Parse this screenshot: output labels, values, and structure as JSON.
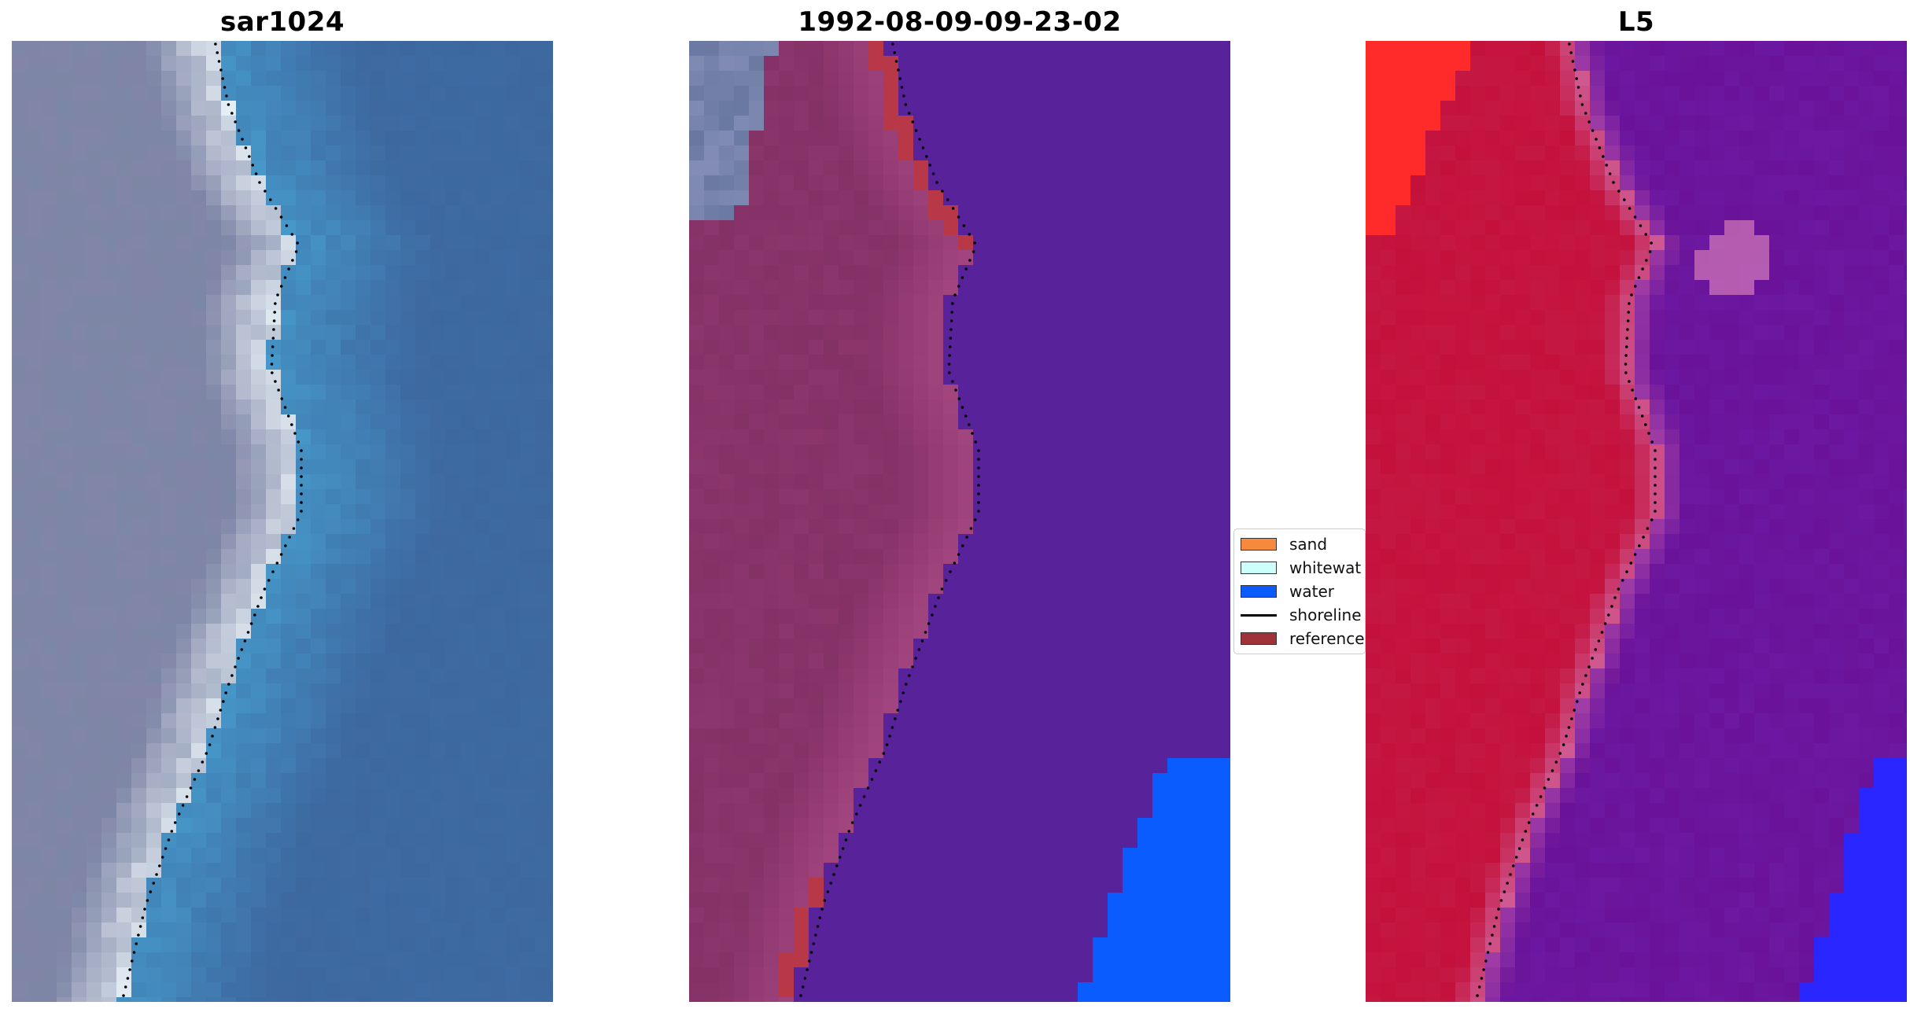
{
  "panels": [
    {
      "id": "sar",
      "title": "sar1024",
      "palette": "rgb"
    },
    {
      "id": "classification",
      "title": "1992-08-09-09-23-02",
      "palette": "classified"
    },
    {
      "id": "l5",
      "title": "L5",
      "palette": "index"
    }
  ],
  "legend": {
    "items": [
      {
        "label": "sand",
        "color": "#f58a3c",
        "kind": "patch"
      },
      {
        "label": "whitewat",
        "color": "#ccfffb",
        "kind": "patch"
      },
      {
        "label": "water",
        "color": "#0a5cff",
        "kind": "patch"
      },
      {
        "label": "shoreline",
        "color": "#000000",
        "kind": "line"
      },
      {
        "label": "reference",
        "color": "#a0333a",
        "kind": "patch"
      }
    ]
  },
  "colors": {
    "sar_water": "#3e6aa2",
    "sar_land": "#7c86a6",
    "sar_foam": "#eef8fb",
    "class_water": "#58239a",
    "class_land": "#843166",
    "class_reference": "#b93848",
    "class_bluewater": "#0a5cff",
    "l5_land": "#c3113c",
    "l5_water": "#6a1299",
    "l5_hot": "#ff2a2a",
    "l5_blue": "#2a26ff"
  }
}
